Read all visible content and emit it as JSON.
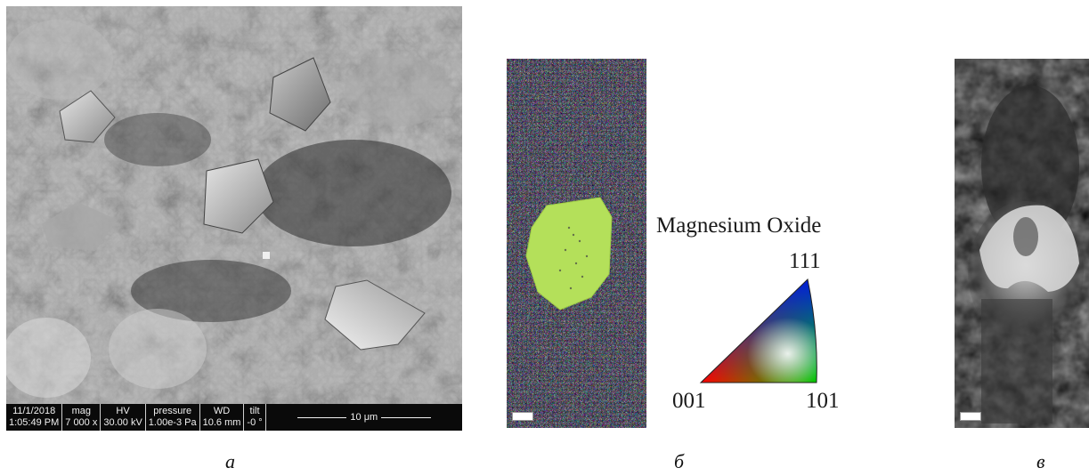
{
  "panel_a": {
    "databar": {
      "date": "11/1/2018",
      "time": "1:05:49 PM",
      "mag_label": "mag",
      "mag_value": "7 000 x",
      "hv_label": "HV",
      "hv_value": "30.00 kV",
      "pressure_label": "pressure",
      "pressure_value": "1.00e-3 Pa",
      "wd_label": "WD",
      "wd_value": "10.6 mm",
      "tilt_label": "tilt",
      "tilt_value": "-0 °",
      "scale_label": "10 μm"
    }
  },
  "legend": {
    "title": "Magnesium Oxide",
    "top_label": "111",
    "left_label": "001",
    "right_label": "101"
  },
  "captions": {
    "a": "а",
    "b": "б",
    "c": "в"
  },
  "colors": {
    "grain": "#b4e05a",
    "databar_bg": "#0a0a0a"
  }
}
